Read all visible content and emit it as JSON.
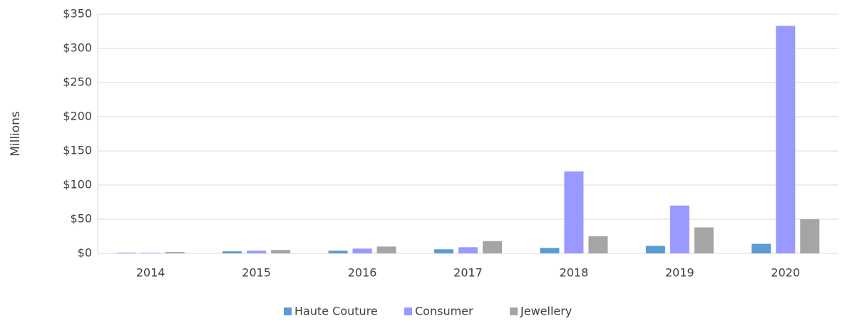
{
  "chart_data": {
    "type": "bar",
    "y_label": "Millions",
    "categories": [
      "2014",
      "2015",
      "2016",
      "2017",
      "2018",
      "2019",
      "2020"
    ],
    "series": [
      {
        "name": "Haute Couture",
        "color": "#5b9bd5",
        "values": [
          1,
          3,
          4,
          6,
          8,
          11,
          14
        ]
      },
      {
        "name": "Consumer",
        "color": "#9999ff",
        "values": [
          1,
          4,
          7,
          9,
          120,
          70,
          333
        ]
      },
      {
        "name": "Jewellery",
        "color": "#a5a5a5",
        "values": [
          2,
          5,
          10,
          18,
          25,
          38,
          50
        ]
      }
    ],
    "ylim": [
      0,
      350
    ],
    "yticks": [
      {
        "value": 0,
        "label": "$0"
      },
      {
        "value": 50,
        "label": "$50"
      },
      {
        "value": 100,
        "label": "$100"
      },
      {
        "value": 150,
        "label": "$150"
      },
      {
        "value": 200,
        "label": "$200"
      },
      {
        "value": 250,
        "label": "$250"
      },
      {
        "value": 300,
        "label": "$300"
      },
      {
        "value": 350,
        "label": "$350"
      }
    ],
    "grid": true,
    "legend": "bottom"
  }
}
